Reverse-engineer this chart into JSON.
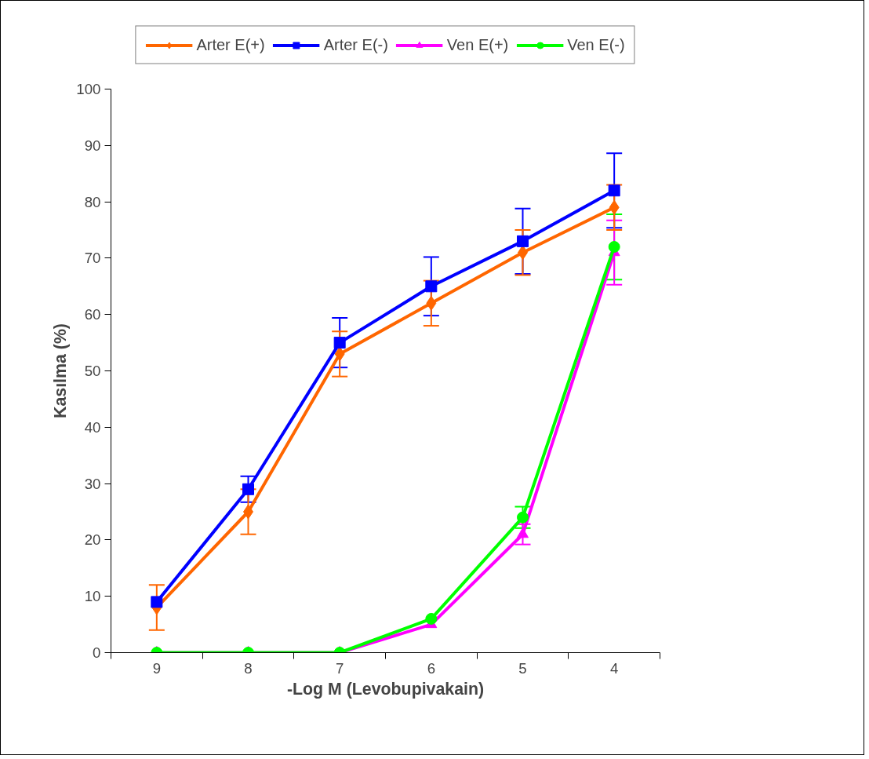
{
  "chart_data": {
    "type": "line",
    "xlabel": "-Log M (Levobupivakain)",
    "ylabel": "Kasılma (%)",
    "categories": [
      "9",
      "8",
      "7",
      "6",
      "5",
      "4"
    ],
    "ylim": [
      0,
      100
    ],
    "yticks": [
      0,
      10,
      20,
      30,
      40,
      50,
      60,
      70,
      80,
      90,
      100
    ],
    "grid": false,
    "legend": "top",
    "line_style": "solid",
    "series": [
      {
        "name": "Arter E(+)",
        "color": "#ff6600",
        "marker": "diamond",
        "values": [
          8,
          25,
          53,
          62,
          71,
          79
        ],
        "errors": [
          4,
          4,
          4,
          4,
          4,
          4
        ]
      },
      {
        "name": "Arter E(-)",
        "color": "#0000ff",
        "marker": "square",
        "values": [
          9,
          29,
          55,
          65,
          73,
          82
        ],
        "errors": [
          null,
          2.3,
          4.4,
          5.2,
          5.8,
          6.6
        ]
      },
      {
        "name": "Ven E(+)",
        "color": "#ff00ff",
        "marker": "triangle",
        "values": [
          0,
          0,
          0,
          5,
          21,
          71
        ],
        "errors": [
          null,
          null,
          null,
          null,
          1.8,
          5.7
        ]
      },
      {
        "name": "Ven E(-)",
        "color": "#00ff00",
        "marker": "circle",
        "values": [
          0,
          0,
          0,
          6,
          24,
          72
        ],
        "errors": [
          null,
          null,
          null,
          null,
          1.9,
          5.8
        ]
      }
    ]
  }
}
